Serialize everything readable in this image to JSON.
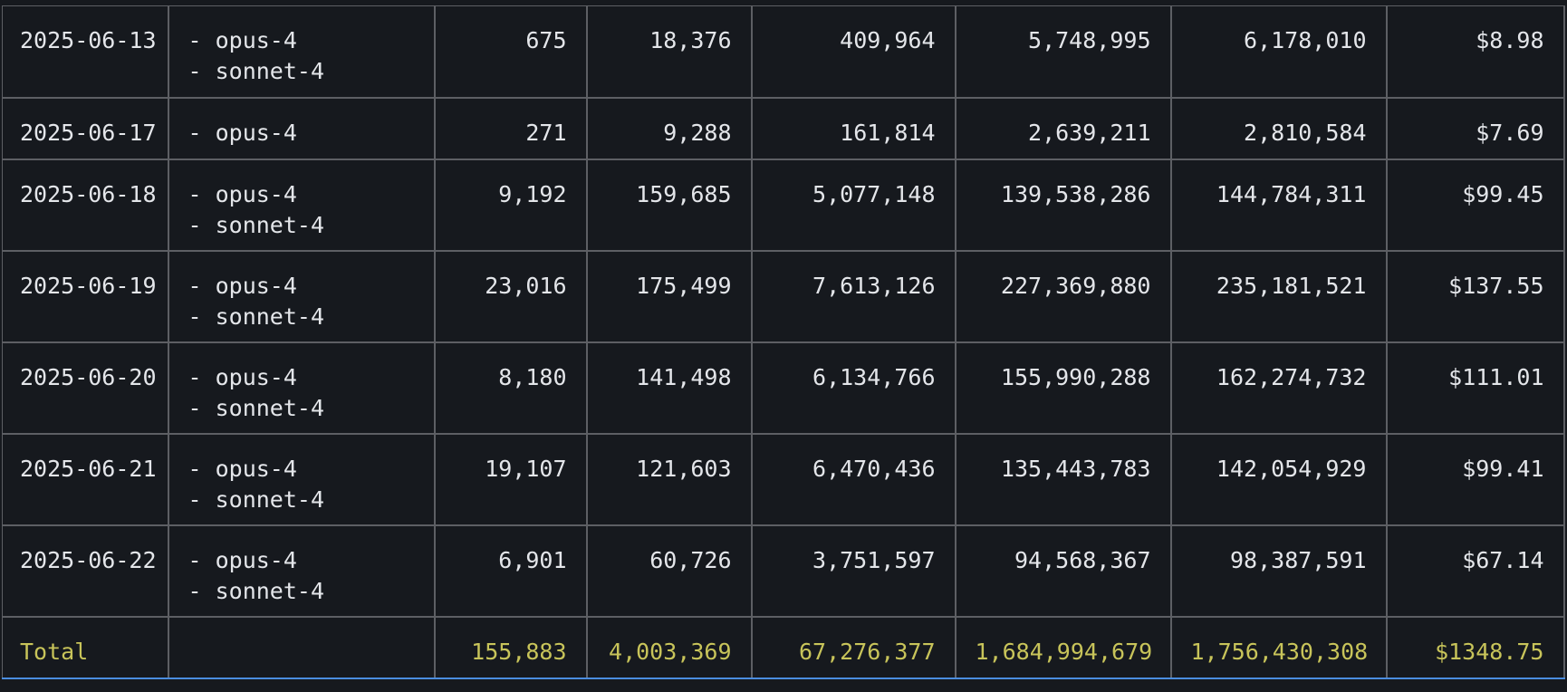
{
  "rows": [
    {
      "date": "2025-06-13",
      "models": [
        "- opus-4",
        "- sonnet-4"
      ],
      "input": "675",
      "output": "18,376",
      "cache_create": "409,964",
      "cache_read": "5,748,995",
      "total_tokens": "6,178,010",
      "cost": "$8.98"
    },
    {
      "date": "2025-06-17",
      "models": [
        "- opus-4"
      ],
      "input": "271",
      "output": "9,288",
      "cache_create": "161,814",
      "cache_read": "2,639,211",
      "total_tokens": "2,810,584",
      "cost": "$7.69"
    },
    {
      "date": "2025-06-18",
      "models": [
        "- opus-4",
        "- sonnet-4"
      ],
      "input": "9,192",
      "output": "159,685",
      "cache_create": "5,077,148",
      "cache_read": "139,538,286",
      "total_tokens": "144,784,311",
      "cost": "$99.45"
    },
    {
      "date": "2025-06-19",
      "models": [
        "- opus-4",
        "- sonnet-4"
      ],
      "input": "23,016",
      "output": "175,499",
      "cache_create": "7,613,126",
      "cache_read": "227,369,880",
      "total_tokens": "235,181,521",
      "cost": "$137.55"
    },
    {
      "date": "2025-06-20",
      "models": [
        "- opus-4",
        "- sonnet-4"
      ],
      "input": "8,180",
      "output": "141,498",
      "cache_create": "6,134,766",
      "cache_read": "155,990,288",
      "total_tokens": "162,274,732",
      "cost": "$111.01"
    },
    {
      "date": "2025-06-21",
      "models": [
        "- opus-4",
        "- sonnet-4"
      ],
      "input": "19,107",
      "output": "121,603",
      "cache_create": "6,470,436",
      "cache_read": "135,443,783",
      "total_tokens": "142,054,929",
      "cost": "$99.41"
    },
    {
      "date": "2025-06-22",
      "models": [
        "- opus-4",
        "- sonnet-4"
      ],
      "input": "6,901",
      "output": "60,726",
      "cache_create": "3,751,597",
      "cache_read": "94,568,367",
      "total_tokens": "98,387,591",
      "cost": "$67.14"
    }
  ],
  "total": {
    "label": "Total",
    "models": "",
    "input": "155,883",
    "output": "4,003,369",
    "cache_create": "67,276,377",
    "cache_read": "1,684,994,679",
    "total_tokens": "1,756,430,308",
    "cost": "$1348.75"
  },
  "colors": {
    "background": "#16191e",
    "border": "#5d5f64",
    "text": "#e4e6ea",
    "total_text": "#c8c45a",
    "bottom_accent": "#4a8de0"
  }
}
